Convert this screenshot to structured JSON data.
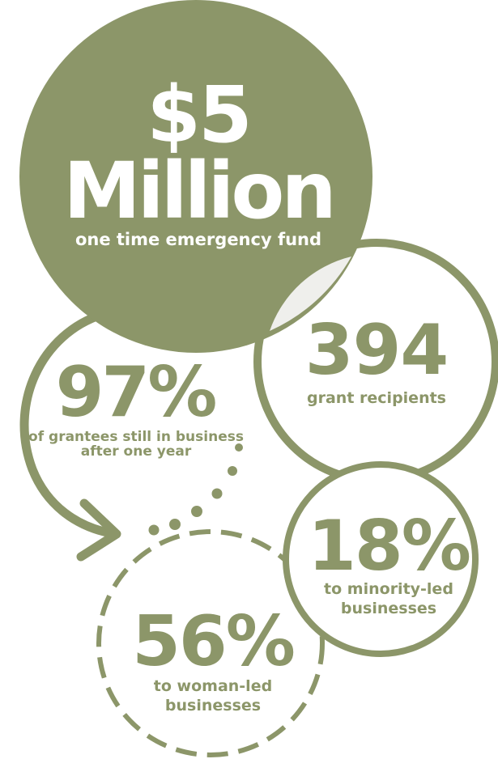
{
  "theme": {
    "accent": "#8c9669",
    "background": "#ffffff",
    "overlap": "#efefec"
  },
  "fund": {
    "amount_line1": "$5",
    "amount_line2": "Million",
    "caption": "one time emergency fund"
  },
  "recipients": {
    "value": "394",
    "caption": "grant recipients"
  },
  "retention": {
    "value": "97%",
    "caption": "of grantees still in business after one year"
  },
  "minority": {
    "value": "18%",
    "caption": "to minority-led businesses"
  },
  "women": {
    "value": "56%",
    "caption": "to woman-led businesses"
  }
}
